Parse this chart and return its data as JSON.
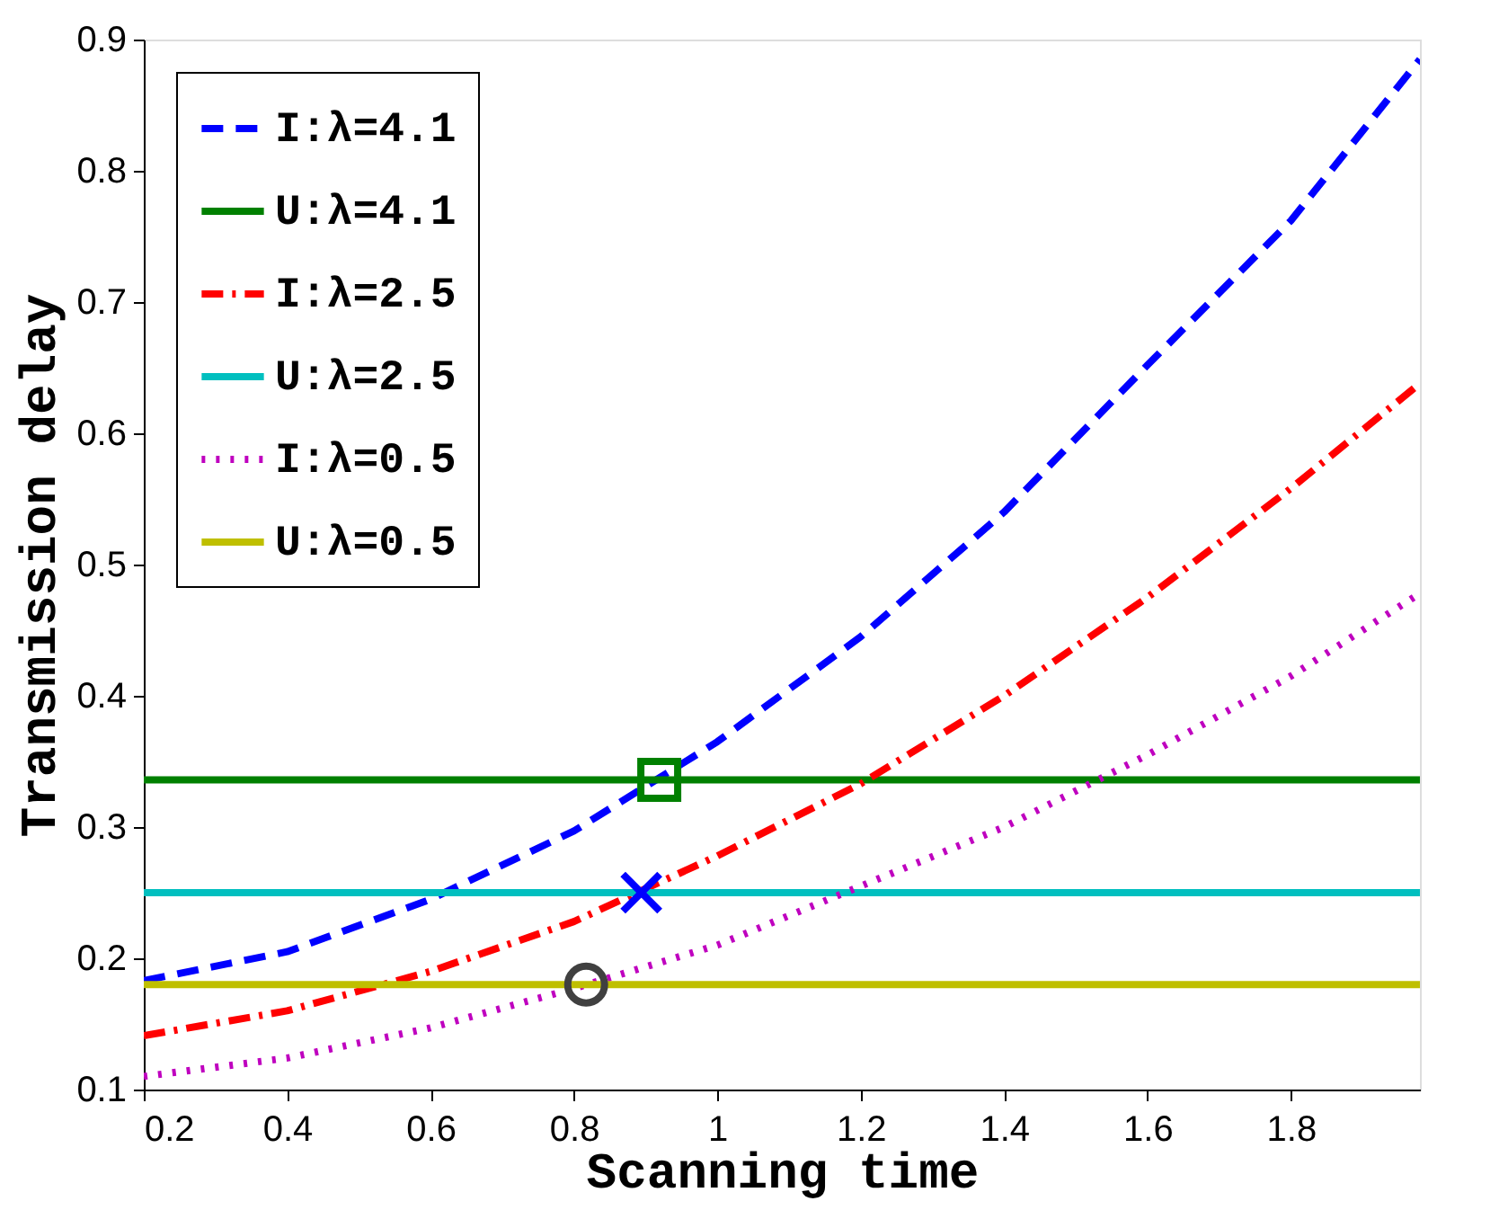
{
  "chart_data": {
    "type": "line",
    "xlabel": "Scanning time",
    "ylabel": "Transmission delay",
    "x": [
      0.2,
      0.4,
      0.6,
      0.8,
      1.0,
      1.2,
      1.4,
      1.6,
      1.8,
      1.98
    ],
    "series": [
      {
        "name": "I:λ=4.1",
        "color": "#0000ff",
        "line_style": "dashed",
        "values": [
          0.183,
          0.205,
          0.245,
          0.297,
          0.365,
          0.445,
          0.54,
          0.652,
          0.762,
          0.885
        ]
      },
      {
        "name": "U:λ=4.1",
        "color": "#008000",
        "line_style": "solid",
        "x": [
          0.2,
          1.98
        ],
        "values": [
          0.336,
          0.336
        ]
      },
      {
        "name": "I:λ=2.5",
        "color": "#ff0000",
        "line_style": "dashdot",
        "values": [
          0.141,
          0.16,
          0.19,
          0.228,
          0.278,
          0.333,
          0.4,
          0.475,
          0.558,
          0.638
        ]
      },
      {
        "name": "U:λ=2.5",
        "color": "#00bfbf",
        "line_style": "solid",
        "x": [
          0.2,
          1.98
        ],
        "values": [
          0.25,
          0.25
        ]
      },
      {
        "name": "I:λ=0.5",
        "color": "#bf00bf",
        "line_style": "dotted",
        "values": [
          0.11,
          0.124,
          0.147,
          0.177,
          0.21,
          0.255,
          0.3,
          0.355,
          0.415,
          0.478
        ]
      },
      {
        "name": "U:λ=0.5",
        "color": "#bfbf00",
        "line_style": "solid",
        "x": [
          0.2,
          1.98
        ],
        "values": [
          0.18,
          0.18
        ]
      },
      {
        "type": "scatter",
        "marker": "square",
        "color": "#008000",
        "x": [
          0.919
        ],
        "values": [
          0.336
        ]
      },
      {
        "type": "scatter",
        "marker": "cross",
        "color": "#0000ff",
        "x": [
          0.894
        ],
        "values": [
          0.25
        ]
      },
      {
        "type": "scatter",
        "marker": "circle",
        "color": "#404040",
        "x": [
          0.817
        ],
        "values": [
          0.18
        ]
      }
    ],
    "xlim": [
      0.2,
      1.98
    ],
    "ylim": [
      0.1,
      0.9
    ],
    "xticks": [
      0.2,
      0.4,
      0.6,
      0.8,
      {
        "value": 1.0,
        "label": "1"
      },
      1.2,
      1.4,
      1.6,
      1.8
    ],
    "yticks": [
      0.1,
      0.2,
      0.3,
      0.4,
      0.5,
      0.6,
      0.7,
      0.8,
      0.9
    ],
    "grid": false,
    "legend": "top left"
  }
}
